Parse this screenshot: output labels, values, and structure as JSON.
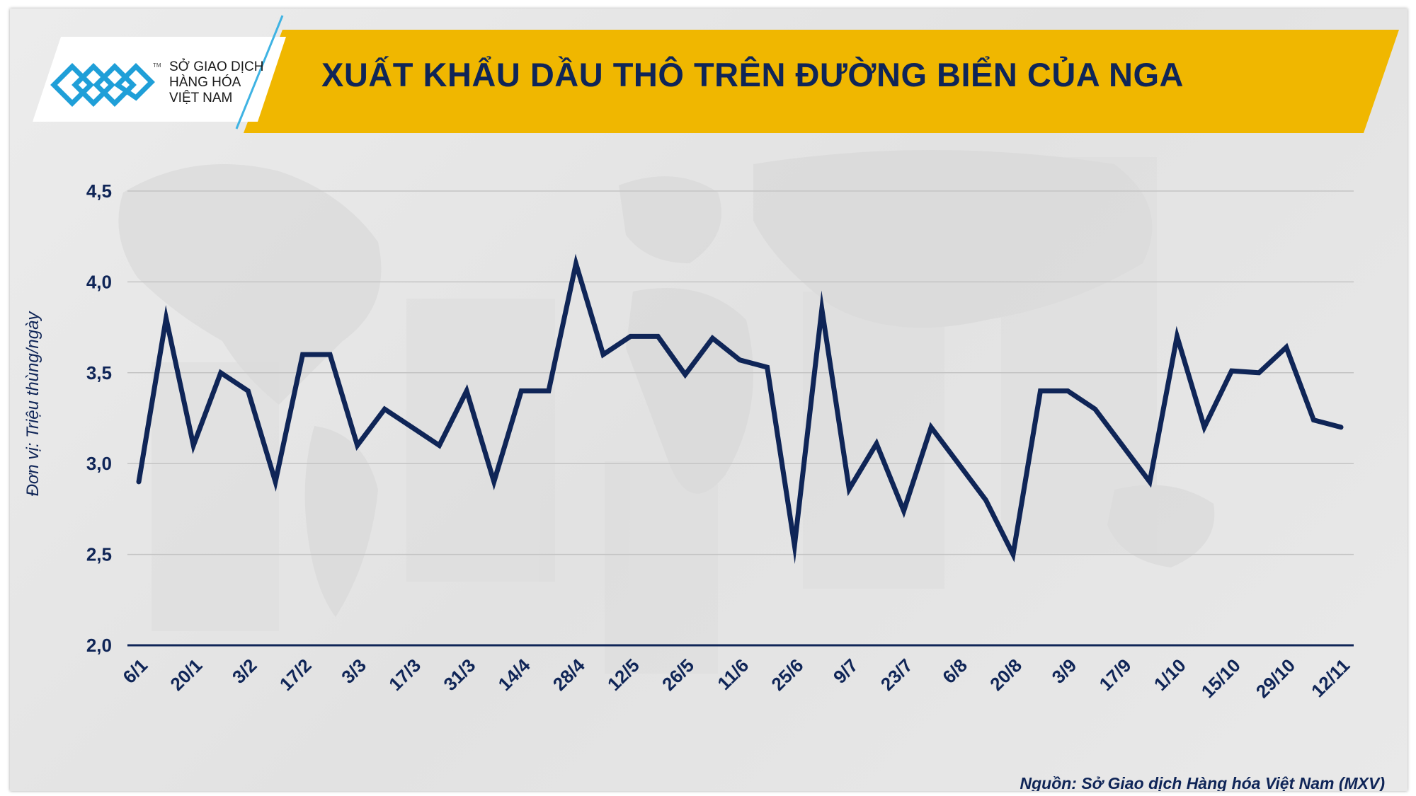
{
  "header": {
    "title": "XUẤT KHẨU DẦU THÔ TRÊN ĐƯỜNG BIỂN CỦA NGA",
    "logo_lines": [
      "SỞ GIAO DỊCH",
      "HÀNG HÓA",
      "VIỆT NAM"
    ],
    "logo_tm": "TM"
  },
  "source": "Nguồn: Sở Giao dịch Hàng hóa Việt Nam (MXV)",
  "colors": {
    "line": "#0f2557",
    "banner": "#f0b700",
    "grid": "#c4c4c4",
    "axis_text": "#0f2557"
  },
  "chart_data": {
    "type": "line",
    "title": "XUẤT KHẨU DẦU THÔ TRÊN ĐƯỜNG BIỂN CỦA NGA",
    "ylabel": "Đơn vị: Triệu thùng/ngày",
    "xlabel": "",
    "ylim": [
      2.0,
      4.5
    ],
    "yticks": [
      "2,0",
      "2,5",
      "3,0",
      "3,5",
      "4,0",
      "4,5"
    ],
    "grid": true,
    "xtick_labels": [
      "6/1",
      "20/1",
      "3/2",
      "17/2",
      "3/3",
      "17/3",
      "31/3",
      "14/4",
      "28/4",
      "12/5",
      "26/5",
      "11/6",
      "25/6",
      "9/7",
      "23/7",
      "6/8",
      "20/8",
      "3/9",
      "17/9",
      "1/10",
      "15/10",
      "29/10",
      "12/11"
    ],
    "series": [
      {
        "values": [
          2.9,
          3.8,
          3.1,
          3.5,
          3.4,
          2.9,
          3.6,
          3.6,
          3.1,
          3.3,
          3.2,
          3.1,
          3.4,
          2.9,
          3.4,
          3.4,
          4.1,
          3.6,
          3.7,
          3.7,
          3.49,
          3.69,
          3.57,
          3.53,
          2.55,
          3.85,
          2.86,
          3.11,
          2.74,
          3.2,
          3.0,
          2.8,
          2.5,
          3.4,
          3.4,
          3.3,
          3.1,
          2.9,
          3.7,
          3.2,
          3.51,
          3.5,
          3.64,
          3.24,
          3.2
        ]
      }
    ]
  }
}
